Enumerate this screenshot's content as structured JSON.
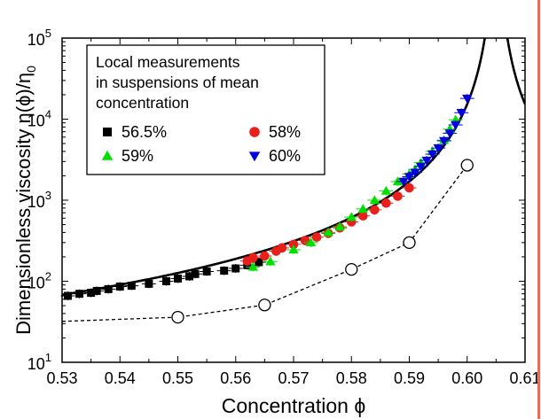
{
  "chart_data": {
    "type": "scatter",
    "xlabel": "Concentration ϕ",
    "ylabel": "Dimensionless viscosity η(ϕ)/η",
    "ylabel_sub": "0",
    "xlim": [
      0.53,
      0.61
    ],
    "ylim": [
      10,
      100000
    ],
    "yscale": "log",
    "grid": false,
    "legend_position": "top-left",
    "legend_title": [
      "Local measurements",
      "in suspensions of mean",
      "concentration"
    ],
    "x_ticks": [
      "0.53",
      "0.54",
      "0.55",
      "0.56",
      "0.57",
      "0.58",
      "0.59",
      "0.60",
      "0.61"
    ],
    "y_ticks": [
      {
        "value": 10,
        "base": "10",
        "exp": "1"
      },
      {
        "value": 100,
        "base": "10",
        "exp": "2"
      },
      {
        "value": 1000,
        "base": "10",
        "exp": "3"
      },
      {
        "value": 10000,
        "base": "10",
        "exp": "4"
      },
      {
        "value": 100000,
        "base": "10",
        "exp": "5"
      }
    ],
    "series": [
      {
        "name": "56.5%",
        "marker": "square",
        "color": "#000000",
        "x": [
          0.531,
          0.533,
          0.535,
          0.536,
          0.538,
          0.54,
          0.542,
          0.545,
          0.548,
          0.55,
          0.552,
          0.553,
          0.555,
          0.558,
          0.56,
          0.562,
          0.564
        ],
        "y": [
          66,
          70,
          72,
          76,
          80,
          86,
          88,
          93,
          100,
          108,
          115,
          123,
          132,
          135,
          144,
          158,
          172
        ]
      },
      {
        "name": "58%",
        "marker": "circle",
        "color": "#e8201c",
        "x": [
          0.562,
          0.563,
          0.565,
          0.567,
          0.568,
          0.57,
          0.572,
          0.574,
          0.576,
          0.578,
          0.58,
          0.582,
          0.584,
          0.586,
          0.588,
          0.59
        ],
        "y": [
          178,
          195,
          205,
          235,
          258,
          285,
          318,
          350,
          390,
          455,
          540,
          640,
          760,
          920,
          1120,
          1420
        ]
      },
      {
        "name": "59%",
        "marker": "triangle-up",
        "color": "#00e000",
        "x": [
          0.563,
          0.566,
          0.57,
          0.573,
          0.576,
          0.578,
          0.58,
          0.582,
          0.584,
          0.586,
          0.588,
          0.59,
          0.591,
          0.592,
          0.594,
          0.596,
          0.597,
          0.598
        ],
        "y": [
          150,
          175,
          245,
          300,
          400,
          470,
          620,
          780,
          1000,
          1300,
          1700,
          2100,
          2400,
          2900,
          4000,
          5500,
          7500,
          9800
        ]
      },
      {
        "name": "60%",
        "marker": "triangle-down",
        "color": "#0000e0",
        "x": [
          0.589,
          0.59,
          0.591,
          0.592,
          0.593,
          0.594,
          0.595,
          0.596,
          0.597,
          0.598,
          0.599,
          0.6
        ],
        "y": [
          1700,
          1950,
          2200,
          2600,
          3100,
          3700,
          4400,
          5400,
          6700,
          8500,
          12000,
          18000
        ]
      }
    ],
    "dashed_series": {
      "marker": "open-circle",
      "x": [
        0.53,
        0.55,
        0.565,
        0.58,
        0.59,
        0.6
      ],
      "y": [
        32,
        36,
        51,
        140,
        300,
        2700
      ]
    },
    "fit_curve": {
      "phi_m": 0.605,
      "y_at_0_53": 68,
      "exponent": 2
    }
  }
}
